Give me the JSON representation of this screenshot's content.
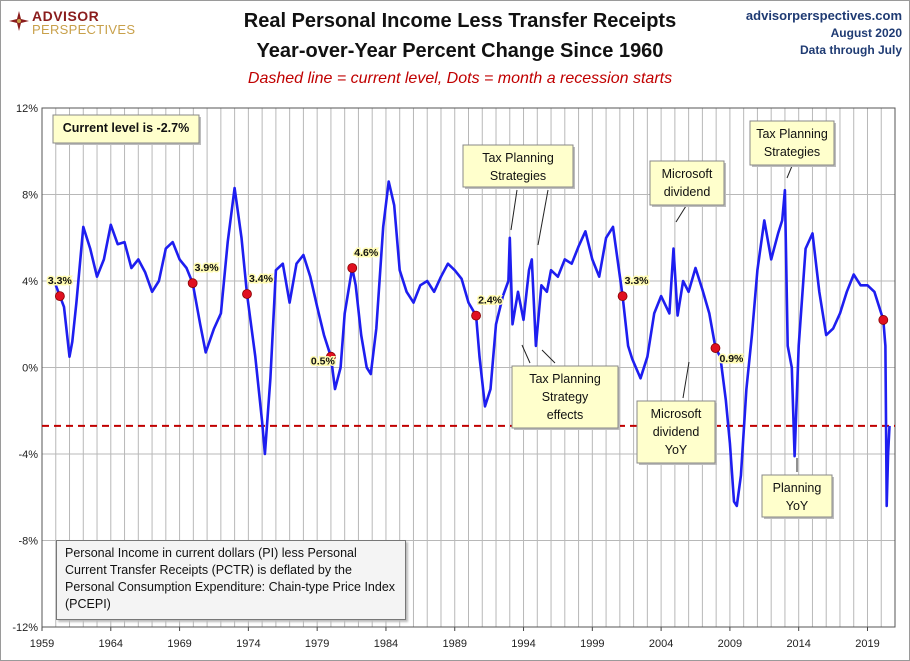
{
  "header": {
    "logo_line1": "ADVISOR",
    "logo_line2": "PERSPECTIVES",
    "title_line1": "Real Personal Income Less Transfer Receipts",
    "title_line2": "Year-over-Year Percent Change Since 1960",
    "subtitle": "Dashed line = current level, Dots = month a recession starts",
    "site": "advisorperspectives.com",
    "date": "August 2020",
    "data_through": "Data through July"
  },
  "note": "Personal Income in current dollars  (PI) less Personal Current Transfer Receipts (PCTR) is deflated by the Personal Consumption Expenditure: Chain-type Price Index (PCEPI)",
  "colors": {
    "line": "#1e1ef0",
    "dot": "#e01020",
    "dashed": "#c00000",
    "recession": "#d6d6d6",
    "callout_bg": "#ffffcc"
  },
  "chart_data": {
    "type": "line",
    "title": "Real Personal Income Less Transfer Receipts",
    "subtitle": "Year-over-Year Percent Change Since 1960",
    "xlabel": "",
    "ylabel": "",
    "xlim": [
      1959,
      2021
    ],
    "ylim": [
      -12,
      12
    ],
    "y_ticks": [
      "-12%",
      "-8%",
      "-4%",
      "0%",
      "4%",
      "8%",
      "12%"
    ],
    "y_tick_values": [
      -12,
      -8,
      -4,
      0,
      4,
      8,
      12
    ],
    "x_ticks": [
      "1959",
      "1964",
      "1969",
      "1974",
      "1979",
      "1984",
      "1989",
      "1994",
      "1999",
      "2004",
      "2009",
      "2014",
      "2019"
    ],
    "current_level": -2.7,
    "current_label": "Current level is -2.7%",
    "recessions": [
      {
        "start": 1960.3,
        "end": 1961.1
      },
      {
        "start": 1969.95,
        "end": 1970.9
      },
      {
        "start": 1973.9,
        "end": 1975.2
      },
      {
        "start": 1980.0,
        "end": 1980.55
      },
      {
        "start": 1981.55,
        "end": 1982.9
      },
      {
        "start": 1990.55,
        "end": 1991.2
      },
      {
        "start": 2001.2,
        "end": 2001.9
      },
      {
        "start": 2007.95,
        "end": 2009.5
      },
      {
        "start": 2020.15,
        "end": 2020.5
      }
    ],
    "recession_start_dots": [
      {
        "x": 1960.3,
        "y": 3.3,
        "label": "3.3%"
      },
      {
        "x": 1969.95,
        "y": 3.9,
        "label": "3.9%"
      },
      {
        "x": 1973.9,
        "y": 3.4,
        "label": "3.4%"
      },
      {
        "x": 1980.0,
        "y": 0.5,
        "label": "0.5%"
      },
      {
        "x": 1981.55,
        "y": 4.6,
        "label": "4.6%"
      },
      {
        "x": 1990.55,
        "y": 2.4,
        "label": "2.4%"
      },
      {
        "x": 2001.2,
        "y": 3.3,
        "label": "3.3%"
      },
      {
        "x": 2007.95,
        "y": 0.9,
        "label": "0.9%"
      },
      {
        "x": 2020.15,
        "y": 2.2,
        "label": ""
      }
    ],
    "series": [
      {
        "name": "Real PI less transfers YoY %",
        "x": [
          1960.0,
          1960.3,
          1960.6,
          1961.0,
          1961.2,
          1961.5,
          1962.0,
          1962.5,
          1963.0,
          1963.5,
          1964.0,
          1964.5,
          1965.0,
          1965.5,
          1966.0,
          1966.5,
          1967.0,
          1967.5,
          1968.0,
          1968.5,
          1969.0,
          1969.5,
          1969.95,
          1970.5,
          1970.9,
          1971.5,
          1972.0,
          1972.5,
          1973.0,
          1973.5,
          1973.9,
          1974.5,
          1975.0,
          1975.2,
          1975.6,
          1976.0,
          1976.5,
          1977.0,
          1977.5,
          1978.0,
          1978.5,
          1979.0,
          1979.5,
          1980.0,
          1980.3,
          1980.7,
          1981.0,
          1981.55,
          1981.8,
          1982.2,
          1982.6,
          1982.9,
          1983.3,
          1983.8,
          1984.2,
          1984.6,
          1985.0,
          1985.5,
          1986.0,
          1986.5,
          1987.0,
          1987.5,
          1988.0,
          1988.5,
          1989.0,
          1989.5,
          1990.0,
          1990.55,
          1990.8,
          1991.2,
          1991.6,
          1992.0,
          1992.5,
          1992.9,
          1993.0,
          1993.2,
          1993.6,
          1994.0,
          1994.4,
          1994.6,
          1994.9,
          1995.3,
          1995.7,
          1996.0,
          1996.5,
          1997.0,
          1997.5,
          1998.0,
          1998.5,
          1999.0,
          1999.5,
          2000.0,
          2000.5,
          2001.2,
          2001.6,
          2001.9,
          2002.5,
          2003.0,
          2003.5,
          2004.0,
          2004.6,
          2004.9,
          2005.2,
          2005.6,
          2006.0,
          2006.5,
          2007.0,
          2007.5,
          2007.95,
          2008.3,
          2008.7,
          2009.0,
          2009.3,
          2009.5,
          2009.8,
          2010.2,
          2010.6,
          2011.0,
          2011.5,
          2012.0,
          2012.5,
          2012.8,
          2013.0,
          2013.2,
          2013.5,
          2013.7,
          2014.0,
          2014.5,
          2015.0,
          2015.5,
          2016.0,
          2016.5,
          2017.0,
          2017.5,
          2018.0,
          2018.5,
          2019.0,
          2019.5,
          2020.15,
          2020.3,
          2020.4,
          2020.5,
          2020.6
        ],
        "values": [
          3.8,
          3.3,
          2.8,
          0.5,
          1.2,
          3.0,
          6.5,
          5.5,
          4.2,
          5.0,
          6.6,
          5.7,
          5.8,
          4.6,
          5.0,
          4.4,
          3.5,
          4.0,
          5.5,
          5.8,
          5.0,
          4.6,
          3.9,
          2.0,
          0.7,
          1.8,
          2.5,
          5.8,
          8.3,
          6.0,
          3.4,
          0.5,
          -2.5,
          -4.0,
          -0.5,
          4.5,
          4.8,
          3.0,
          4.8,
          5.2,
          4.2,
          2.8,
          1.5,
          0.5,
          -1.0,
          0.0,
          2.5,
          4.6,
          3.8,
          1.5,
          0.0,
          -0.3,
          1.8,
          6.5,
          8.6,
          7.5,
          4.5,
          3.5,
          3.0,
          3.8,
          4.0,
          3.5,
          4.2,
          4.8,
          4.5,
          4.1,
          3.0,
          2.4,
          0.5,
          -1.8,
          -1.0,
          2.0,
          3.3,
          4.0,
          6.0,
          2.0,
          3.5,
          2.2,
          4.5,
          5.0,
          1.0,
          3.8,
          3.5,
          4.5,
          4.2,
          5.0,
          4.8,
          5.6,
          6.3,
          5.0,
          4.2,
          6.0,
          6.5,
          3.3,
          1.0,
          0.4,
          -0.5,
          0.5,
          2.5,
          3.3,
          2.5,
          5.5,
          2.4,
          4.0,
          3.5,
          4.6,
          3.6,
          2.5,
          0.9,
          0.5,
          -1.5,
          -3.5,
          -6.2,
          -6.4,
          -5.0,
          -1.0,
          1.5,
          4.5,
          6.8,
          5.0,
          6.2,
          6.8,
          8.2,
          1.0,
          0.0,
          -4.1,
          1.0,
          5.5,
          6.2,
          3.5,
          1.5,
          1.8,
          2.5,
          3.5,
          4.3,
          3.8,
          3.8,
          3.5,
          2.2,
          1.0,
          -6.4,
          -4.0,
          -2.7
        ]
      }
    ],
    "annotations": [
      {
        "text": "Tax Planning Strategies",
        "x": 1993,
        "y": 6.0
      },
      {
        "text": "Tax Planning Strategy effects",
        "x": 1994,
        "y": 1.0
      },
      {
        "text": "Microsoft dividend",
        "x": 2004.9,
        "y": 5.5
      },
      {
        "text": "Microsoft dividend YoY",
        "x": 2005.3,
        "y": 0.4
      },
      {
        "text": "Tax Planning Strategies",
        "x": 2012.8,
        "y": 8.2
      },
      {
        "text": "Planning YoY",
        "x": 2013.7,
        "y": -4.1
      }
    ]
  },
  "callouts": {
    "current": "Current level is -2.7%",
    "tax1": [
      "Tax Planning",
      "Strategies"
    ],
    "taxeffects": [
      "Tax Planning",
      "Strategy",
      "effects"
    ],
    "ms1": [
      "Microsoft",
      "dividend"
    ],
    "ms2": [
      "Microsoft",
      "dividend",
      "YoY"
    ],
    "tax2": [
      "Tax Planning",
      "Strategies"
    ],
    "planning": [
      "Planning",
      "YoY"
    ]
  }
}
